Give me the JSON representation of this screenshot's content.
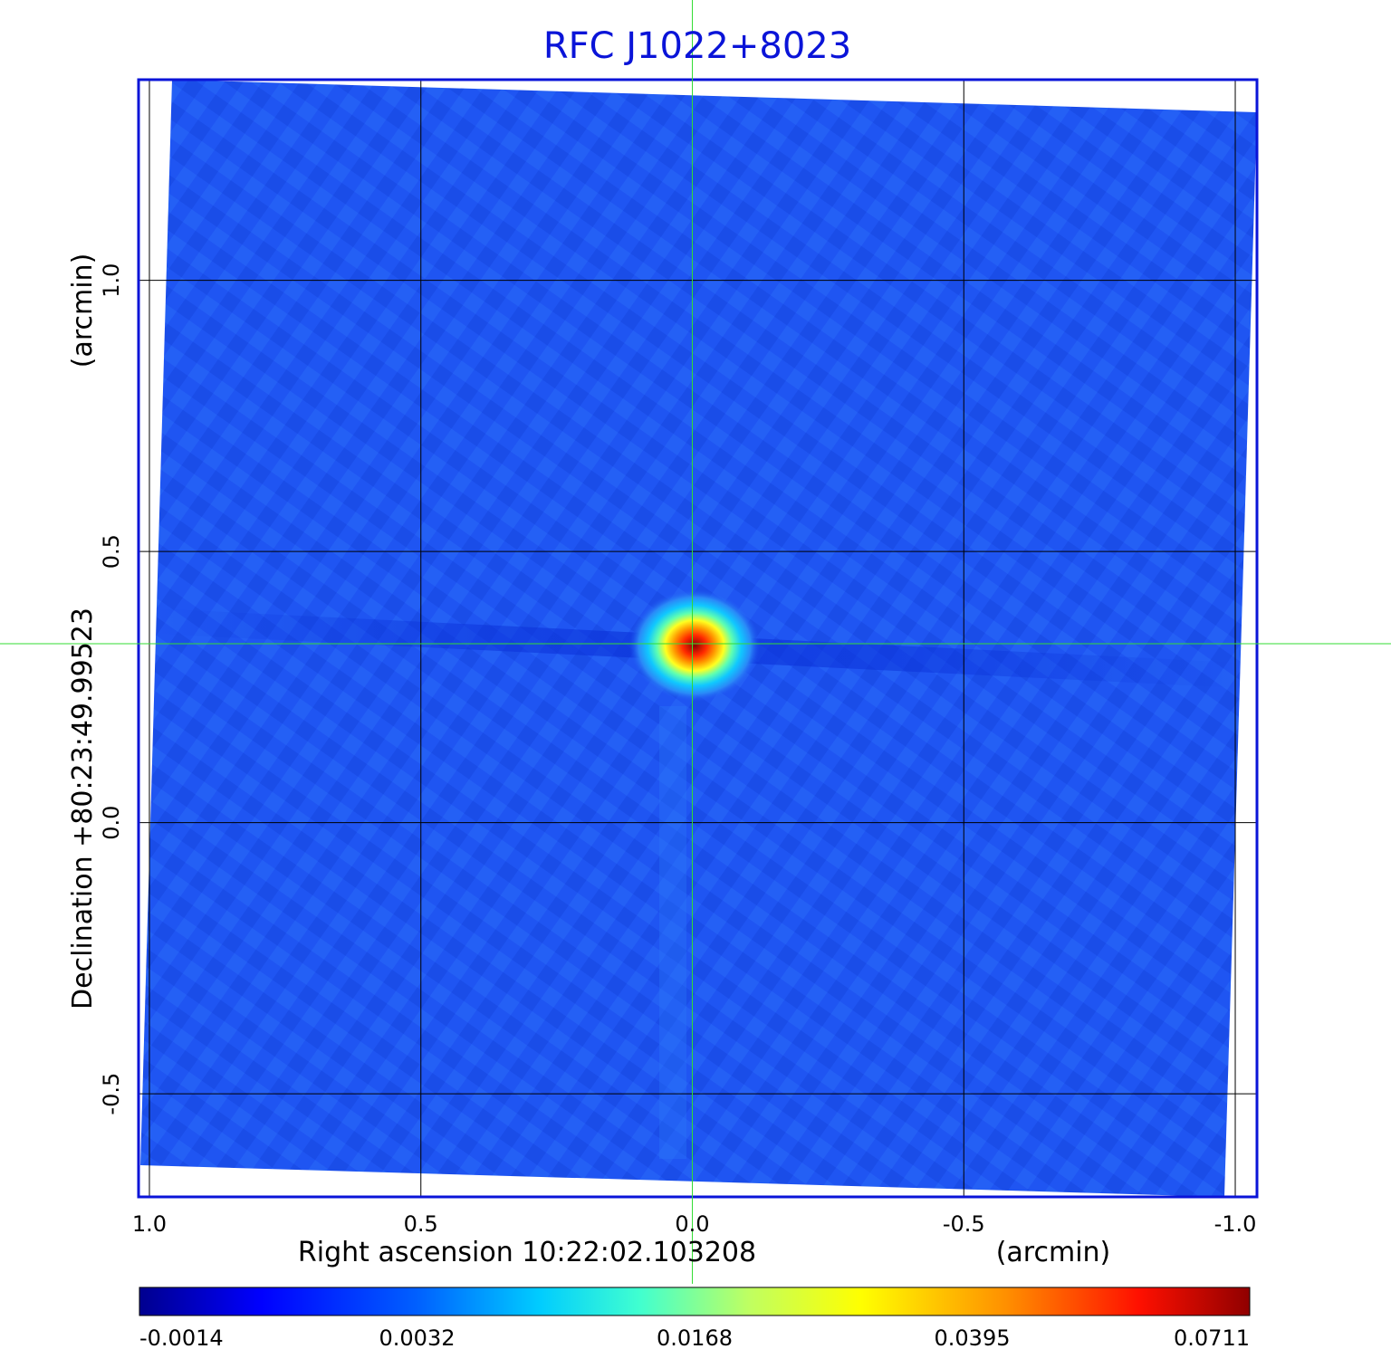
{
  "chart_data": {
    "type": "heatmap",
    "title": "RFC J1022+8023",
    "xlabel": "Right ascension  10:22:02.103208",
    "xunit": "(arcmin)",
    "ylabel": "Declination  +80:23:49.99523",
    "yunit": "(arcmin)",
    "x_ticks": [
      "1.0",
      "0.5",
      "0.0",
      "-0.5",
      "-1.0"
    ],
    "y_ticks": [
      "1.0",
      "0.5",
      "0.0",
      "-0.5"
    ],
    "x_tick_values": [
      1.0,
      0.5,
      0.0,
      -0.5,
      -1.0
    ],
    "y_tick_values": [
      1.0,
      0.5,
      0.0,
      -0.5
    ],
    "xlim": [
      1.02,
      -1.04
    ],
    "ylim": [
      -0.69,
      1.37
    ],
    "grid": true,
    "crosshair": {
      "x": 0.0,
      "y": 0.33,
      "color": "#33dd33"
    },
    "colormap": "jet",
    "colorbar": {
      "ticks": [
        "-0.0014",
        "0.0032",
        "0.0168",
        "0.0395",
        "0.0711"
      ],
      "position": "bottom"
    },
    "peak": {
      "ra_offset": -0.01,
      "dec_offset": 0.33,
      "value": 0.0711
    },
    "background_value": 0.0
  },
  "colors": {
    "title": "#0a14d8",
    "frame": "#0a14d8",
    "grid": "#000000",
    "crosshair": "#33dd33",
    "background_map": "#1f55f2"
  }
}
